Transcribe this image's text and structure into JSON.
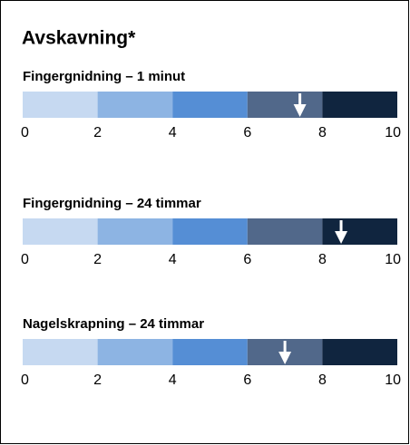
{
  "title": "Avskavning*",
  "chart_data": [
    {
      "type": "scale",
      "title": "Fingergnidning – 1 minut",
      "xlim": [
        0,
        10
      ],
      "xticks": [
        0,
        2,
        4,
        6,
        8,
        10
      ],
      "band_colors": [
        "#c6d9f1",
        "#8db4e3",
        "#558ed5",
        "#51688a",
        "#10253f"
      ],
      "value": 7.4,
      "color": "#ffffff"
    },
    {
      "type": "scale",
      "title": "Fingergnidning – 24 timmar",
      "xlim": [
        0,
        10
      ],
      "xticks": [
        0,
        2,
        4,
        6,
        8,
        10
      ],
      "band_colors": [
        "#c6d9f1",
        "#8db4e3",
        "#558ed5",
        "#51688a",
        "#10253f"
      ],
      "value": 8.5,
      "color": "#ffffff"
    },
    {
      "type": "scale",
      "title": "Nagelskrapning – 24 timmar",
      "xlim": [
        0,
        10
      ],
      "xticks": [
        0,
        2,
        4,
        6,
        8,
        10
      ],
      "band_colors": [
        "#c6d9f1",
        "#8db4e3",
        "#558ed5",
        "#51688a",
        "#10253f"
      ],
      "value": 7.0,
      "color": "#ffffff"
    }
  ]
}
